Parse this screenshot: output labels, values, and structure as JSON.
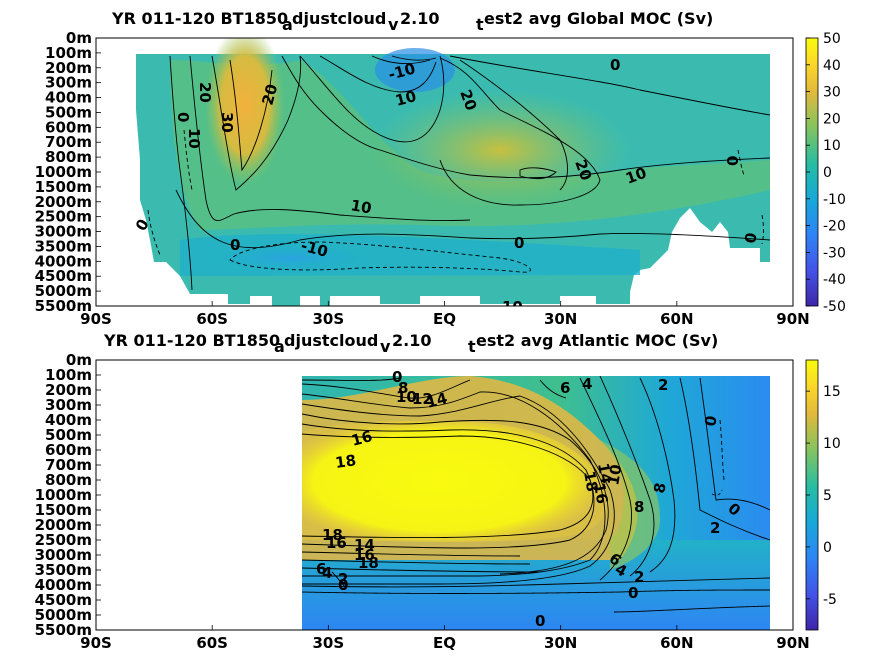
{
  "chart_data": [
    {
      "type": "heatmap",
      "title": "YR 011-120 BT1850_adjustcloud_v2.10_test2 avg  Global MOC (Sv)",
      "title_parts": [
        "YR 011-120 BT1850",
        "a",
        "djustcloud",
        "v",
        "2.10",
        "t",
        "est2 avg  Global MOC (Sv)"
      ],
      "x_ticks": [
        "90S",
        "60S",
        "30S",
        "EQ",
        "30N",
        "60N",
        "90N"
      ],
      "x_values": [
        -90,
        -60,
        -30,
        0,
        30,
        60,
        90
      ],
      "y_ticks": [
        "0m",
        "100m",
        "200m",
        "300m",
        "400m",
        "500m",
        "600m",
        "700m",
        "800m",
        "1000m",
        "1500m",
        "2000m",
        "2500m",
        "3000m",
        "3500m",
        "4000m",
        "4500m",
        "5000m",
        "5500m"
      ],
      "colorbar": {
        "min": -50,
        "max": 50,
        "ticks": [
          "50",
          "40",
          "30",
          "20",
          "10",
          "0",
          "-10",
          "-20",
          "-30",
          "-40",
          "-50"
        ]
      },
      "contour_labels": [
        "-10",
        "0",
        "10",
        "20",
        "0",
        "10",
        "30",
        "20",
        "10",
        "20",
        "20",
        "10",
        "0",
        "0",
        "10",
        "-10",
        "0",
        "0",
        "0"
      ],
      "colormap": "parula"
    },
    {
      "type": "heatmap",
      "title": "YR 011-120 BT1850_adjustcloud_v2.10_test2 avg  Atlantic MOC (Sv)",
      "title_parts": [
        "YR 011-120 BT1850",
        "a",
        "djustcloud",
        "v",
        "2.10",
        "t",
        "est2 avg  Atlantic MOC (Sv)"
      ],
      "x_ticks": [
        "90S",
        "60S",
        "30S",
        "EQ",
        "30N",
        "60N",
        "90N"
      ],
      "x_values": [
        -90,
        -60,
        -30,
        0,
        30,
        60,
        90
      ],
      "y_ticks": [
        "0m",
        "100m",
        "200m",
        "300m",
        "400m",
        "500m",
        "600m",
        "700m",
        "800m",
        "1000m",
        "1500m",
        "2000m",
        "2500m",
        "3000m",
        "3500m",
        "4000m",
        "4500m",
        "5000m",
        "5500m"
      ],
      "colorbar": {
        "min": -8,
        "max": 18,
        "ticks": [
          "15",
          "10",
          "5",
          "0",
          "-5"
        ]
      },
      "contour_labels": [
        "0",
        "8",
        "10",
        "12",
        "14",
        "6",
        "4",
        "2",
        "16",
        "18",
        "0",
        "14",
        "18",
        "16",
        "10",
        "8",
        "8",
        "0",
        "2",
        "18",
        "16",
        "14",
        "16",
        "18",
        "6",
        "4",
        "2",
        "0",
        "6",
        "4",
        "2",
        "0",
        "0"
      ],
      "colormap": "parula"
    }
  ]
}
